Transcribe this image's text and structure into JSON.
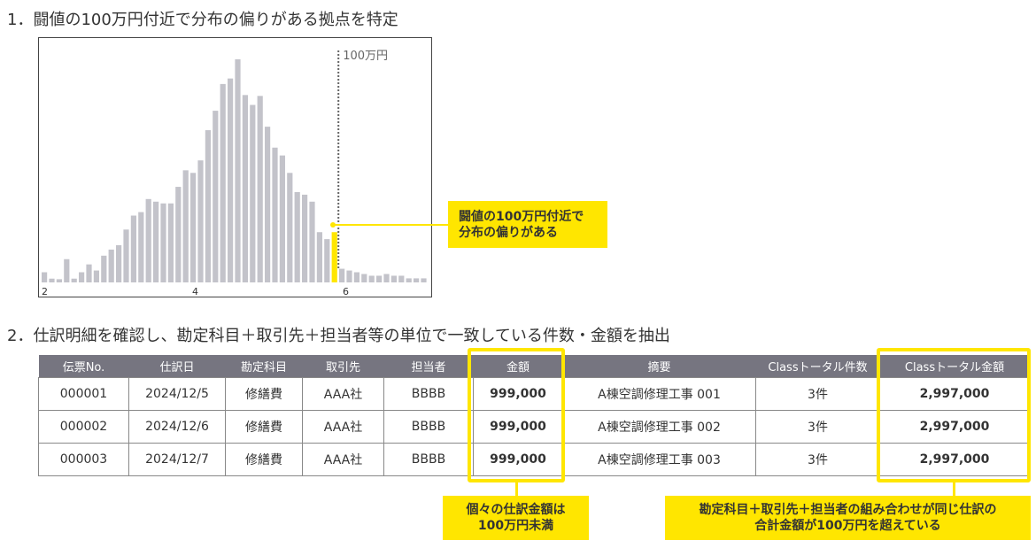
{
  "heading1": "1．闘値の100万円付近で分布の偏りがある拠点を特定",
  "heading2": "2．仕訳明細を確認し、勘定科目＋取引先＋担当者等の単位で一致している件数・金額を抽出",
  "chart_data": {
    "type": "bar",
    "title": "",
    "xlabel": "",
    "ylabel": "",
    "x_ticks": [
      "2",
      "4",
      "6"
    ],
    "values": [
      35,
      13,
      11,
      80,
      13,
      35,
      62,
      41,
      92,
      113,
      128,
      182,
      230,
      242,
      287,
      278,
      272,
      272,
      329,
      386,
      377,
      420,
      524,
      591,
      683,
      702,
      768,
      645,
      611,
      642,
      536,
      464,
      437,
      377,
      311,
      302,
      278,
      173,
      149,
      173,
      47,
      41,
      35,
      29,
      23,
      23,
      29,
      23,
      23,
      14,
      14,
      14
    ],
    "highlight_index": 39,
    "threshold_label": "100万円",
    "colors": {
      "bar": "#c3c3ca",
      "highlight": "#ffe600",
      "threshold": "#666666"
    }
  },
  "callout_chart": [
    "闘値の100万円付近で",
    "分布の偏りがある"
  ],
  "table": {
    "headers": [
      "伝票No.",
      "仕訳日",
      "勘定科目",
      "取引先",
      "担当者",
      "金額",
      "摘要",
      "Classトータル件数",
      "Classトータル金額"
    ],
    "rows": [
      [
        "000001",
        "2024/12/5",
        "修繕費",
        "AAA社",
        "BBBB",
        "999,000",
        "A棟空調修理工事 001",
        "3件",
        "2,997,000"
      ],
      [
        "000002",
        "2024/12/6",
        "修繕費",
        "AAA社",
        "BBBB",
        "999,000",
        "A棟空調修理工事 002",
        "3件",
        "2,997,000"
      ],
      [
        "000003",
        "2024/12/7",
        "修繕費",
        "AAA社",
        "BBBB",
        "999,000",
        "A棟空調修理工事 003",
        "3件",
        "2,997,000"
      ]
    ]
  },
  "callout_amount": [
    "個々の仕訳金額は",
    "100万円未満"
  ],
  "callout_total": [
    "勘定科目＋取引先＋担当者の組み合わせが同じ仕訳の",
    "合計金額が100万円を超えている"
  ]
}
